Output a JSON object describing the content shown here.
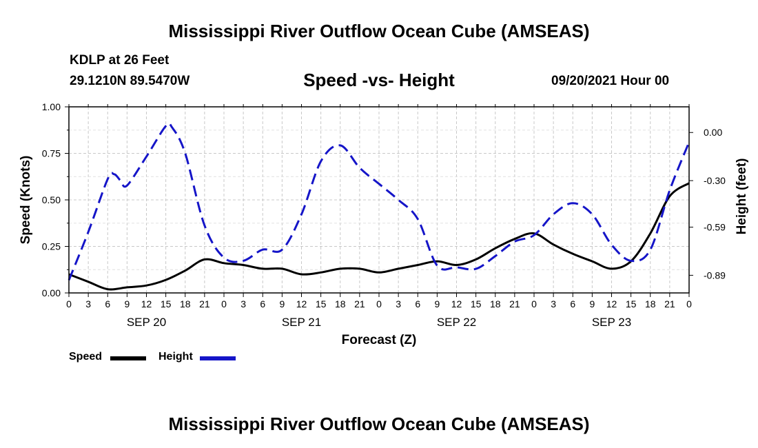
{
  "header": {
    "title": "Mississippi River Outflow Ocean Cube (AMSEAS)",
    "station": "KDLP at 26 Feet",
    "coords": "29.1210N  89.5470W",
    "subtitle": "Speed -vs- Height",
    "datetime": "09/20/2021 Hour 00"
  },
  "footer": {
    "title": "Mississippi River Outflow Ocean Cube (AMSEAS)"
  },
  "legend": {
    "speed": "Speed",
    "height": "Height"
  },
  "colors": {
    "speed": "#000000",
    "height": "#1515c8",
    "grid": "#c8c8c8"
  },
  "chart_data": {
    "type": "line",
    "xlabel": "Forecast (Z)",
    "ylabel": "Speed (Knots)",
    "y2label": "Height (feet)",
    "xlim": [
      0,
      96
    ],
    "ylim": [
      0,
      1.0
    ],
    "y2lim": [
      -1.0,
      0.16
    ],
    "xticks": [
      0,
      3,
      6,
      9,
      12,
      15,
      18,
      21,
      24,
      27,
      30,
      33,
      36,
      39,
      42,
      45,
      48,
      51,
      54,
      57,
      60,
      63,
      66,
      69,
      72,
      75,
      78,
      81,
      84,
      87,
      90,
      93,
      96
    ],
    "xtick_labels": [
      "0",
      "3",
      "6",
      "9",
      "12",
      "15",
      "18",
      "21",
      "0",
      "3",
      "6",
      "9",
      "12",
      "15",
      "18",
      "21",
      "0",
      "3",
      "6",
      "9",
      "12",
      "15",
      "18",
      "21",
      "0",
      "3",
      "6",
      "9",
      "12",
      "15",
      "18",
      "21",
      "0"
    ],
    "date_labels": [
      {
        "x": 12,
        "label": "SEP 20"
      },
      {
        "x": 36,
        "label": "SEP 21"
      },
      {
        "x": 60,
        "label": "SEP 22"
      },
      {
        "x": 84,
        "label": "SEP 23"
      }
    ],
    "yticks": [
      0.0,
      0.25,
      0.5,
      0.75,
      1.0
    ],
    "ytick_labels": [
      "0.00",
      "0.25",
      "0.50",
      "0.75",
      "1.00"
    ],
    "y2ticks": [
      0.0,
      -0.3,
      -0.59,
      -0.89
    ],
    "y2tick_labels": [
      "0.00",
      "-0.30",
      "-0.59",
      "-0.89"
    ],
    "series": [
      {
        "name": "Speed",
        "axis": "left",
        "style": "solid",
        "x": [
          0,
          3,
          6,
          9,
          12,
          15,
          18,
          21,
          24,
          27,
          30,
          33,
          36,
          39,
          42,
          45,
          48,
          51,
          54,
          57,
          60,
          63,
          66,
          69,
          72,
          75,
          78,
          81,
          84,
          87,
          90,
          93,
          96
        ],
        "values": [
          0.1,
          0.06,
          0.02,
          0.03,
          0.04,
          0.07,
          0.12,
          0.18,
          0.16,
          0.15,
          0.13,
          0.13,
          0.1,
          0.11,
          0.13,
          0.13,
          0.11,
          0.13,
          0.15,
          0.17,
          0.15,
          0.18,
          0.24,
          0.29,
          0.32,
          0.26,
          0.21,
          0.17,
          0.13,
          0.17,
          0.32,
          0.52,
          0.59
        ]
      },
      {
        "name": "Height",
        "axis": "right",
        "style": "dashed",
        "x": [
          0,
          3,
          6,
          7,
          8,
          9,
          12,
          15,
          16,
          18,
          21,
          24,
          27,
          30,
          33,
          36,
          39,
          42,
          45,
          48,
          51,
          54,
          57,
          60,
          63,
          66,
          69,
          72,
          75,
          78,
          81,
          84,
          87,
          90,
          93,
          96
        ],
        "values": [
          -0.92,
          -0.62,
          -0.29,
          -0.26,
          -0.3,
          -0.33,
          -0.15,
          0.04,
          0.03,
          -0.13,
          -0.58,
          -0.78,
          -0.8,
          -0.73,
          -0.73,
          -0.51,
          -0.18,
          -0.08,
          -0.22,
          -0.32,
          -0.42,
          -0.54,
          -0.83,
          -0.84,
          -0.85,
          -0.77,
          -0.68,
          -0.64,
          -0.51,
          -0.44,
          -0.51,
          -0.7,
          -0.8,
          -0.73,
          -0.36,
          -0.06
        ]
      }
    ]
  }
}
